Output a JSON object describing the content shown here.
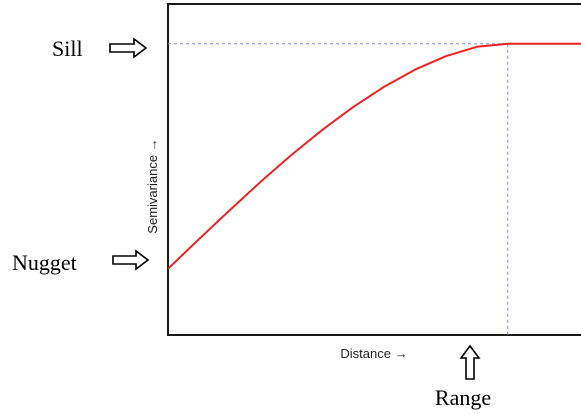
{
  "chart_data": {
    "type": "line",
    "title": "",
    "xlabel": "Distance →",
    "ylabel": "Semivariance →",
    "grid": false,
    "legend": "none",
    "xlim": [
      0,
      1.36
    ],
    "ylim": [
      0,
      1.25
    ],
    "x_ticks": [],
    "y_ticks": [],
    "series": [
      {
        "color": "#ee2222",
        "x": [
          0,
          0.1,
          0.2,
          0.3,
          0.4,
          0.5,
          0.6,
          0.7,
          0.8,
          0.9,
          1.0,
          1.1,
          1.2,
          1.3,
          1.36
        ],
        "y": [
          0.25,
          0.3617,
          0.4718,
          0.5785,
          0.6802,
          0.775,
          0.8615,
          0.9377,
          1.0022,
          1.053,
          1.0885,
          1.1,
          1.1,
          1.1,
          1.1
        ]
      }
    ],
    "reference_lines": {
      "sill": 1.1,
      "range": 1.1,
      "nugget": 0.25,
      "color": "#8888ee"
    },
    "annotations": [
      {
        "id": "sill",
        "text": "Sill",
        "arrow": "right"
      },
      {
        "id": "nugget",
        "text": "Nugget",
        "arrow": "right"
      },
      {
        "id": "range",
        "text": "Range",
        "arrow": "up"
      }
    ]
  }
}
